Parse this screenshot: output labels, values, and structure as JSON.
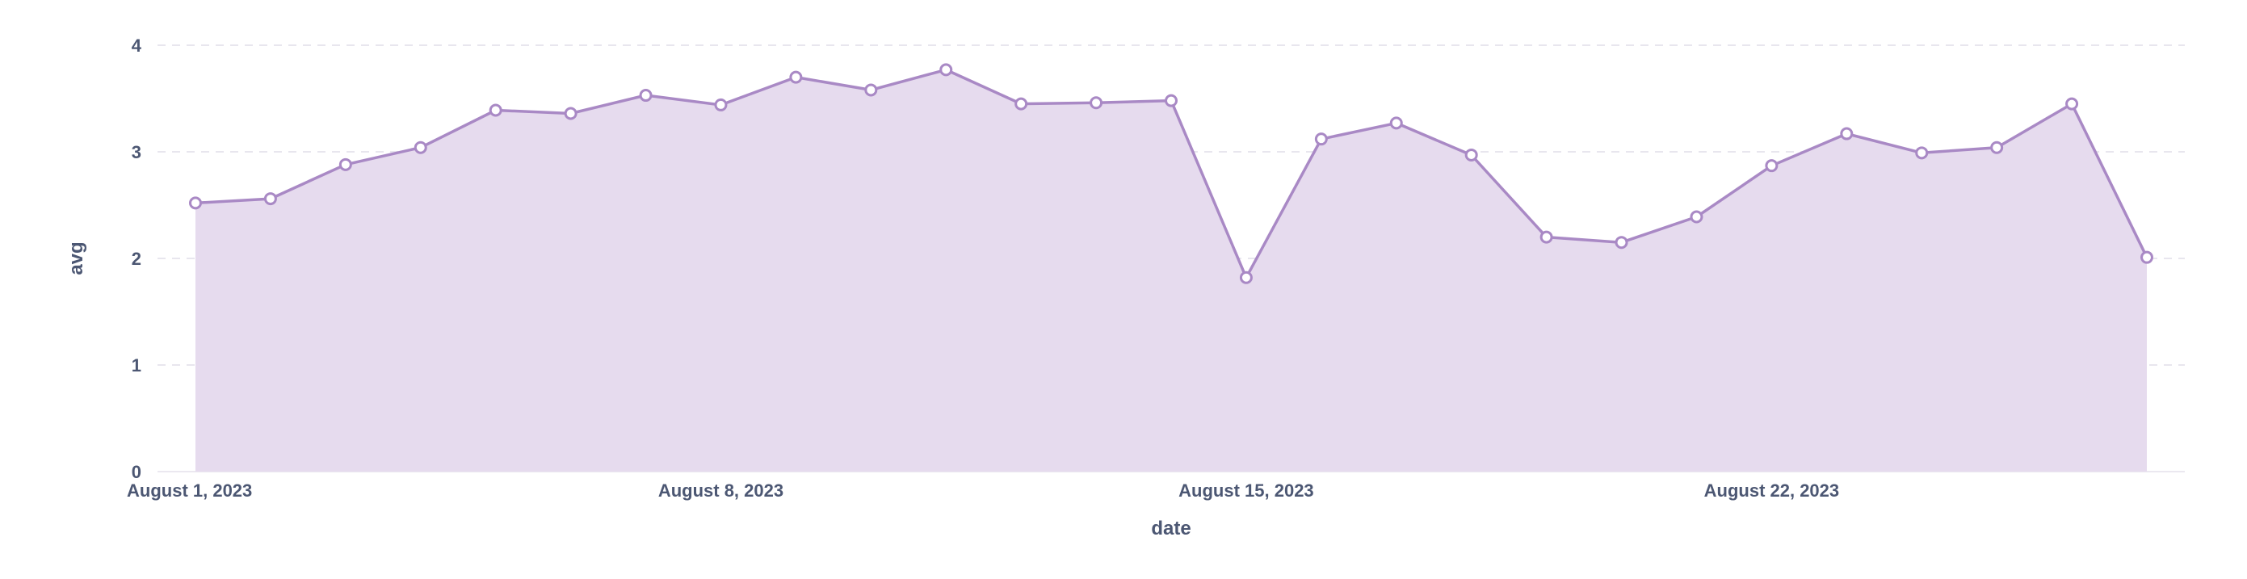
{
  "chart_data": {
    "type": "area",
    "xlabel": "date",
    "ylabel": "avg",
    "ylim": [
      0,
      4
    ],
    "y_ticks": [
      "0",
      "1",
      "2",
      "3",
      "4"
    ],
    "x_tick_labels": [
      {
        "date": "2023-08-01",
        "label": "August 1, 2023"
      },
      {
        "date": "2023-08-08",
        "label": "August 8, 2023"
      },
      {
        "date": "2023-08-15",
        "label": "August 15, 2023"
      },
      {
        "date": "2023-08-22",
        "label": "August 22, 2023"
      }
    ],
    "grid": true,
    "colors": {
      "line": "#a989c5",
      "fill": "#e6dbee",
      "marker_fill": "#ffffff"
    },
    "series": [
      {
        "x": [
          "2023-08-01",
          "2023-08-02",
          "2023-08-03",
          "2023-08-04",
          "2023-08-05",
          "2023-08-06",
          "2023-08-07",
          "2023-08-08",
          "2023-08-09",
          "2023-08-10",
          "2023-08-11",
          "2023-08-12",
          "2023-08-13",
          "2023-08-14",
          "2023-08-15",
          "2023-08-16",
          "2023-08-17",
          "2023-08-18",
          "2023-08-19",
          "2023-08-20",
          "2023-08-21",
          "2023-08-22",
          "2023-08-23",
          "2023-08-24",
          "2023-08-25",
          "2023-08-26",
          "2023-08-27"
        ],
        "values": [
          2.52,
          2.56,
          2.88,
          3.04,
          3.39,
          3.36,
          3.53,
          3.44,
          3.7,
          3.58,
          3.77,
          3.45,
          3.46,
          3.48,
          1.82,
          3.12,
          3.27,
          2.97,
          2.2,
          2.15,
          2.39,
          2.87,
          3.17,
          2.99,
          3.04,
          3.45,
          2.01
        ]
      }
    ]
  }
}
